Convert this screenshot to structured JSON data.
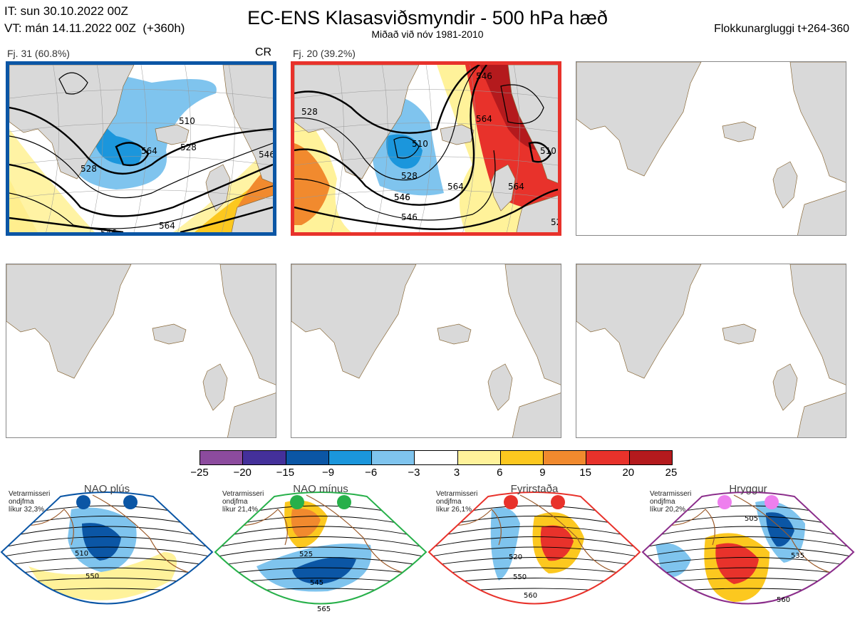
{
  "header": {
    "it": "IT: sun 30.10.2022 00Z",
    "vt": "VT: mán 14.11.2022 00Z  (+360h)",
    "title": "EC-ENS Klasasviðsmyndir - 500 hPa hæð",
    "subtitle": "Miðað við nóv 1981-2010",
    "window": "Flokkunargluggi t+264-360"
  },
  "clusters": [
    {
      "label": "Fj. 31 (60.8%)",
      "tag": "CR",
      "border_color": "#0b56a5",
      "contours": [
        "510",
        "528",
        "528",
        "546",
        "546",
        "564",
        "564"
      ]
    },
    {
      "label": "Fj. 20 (39.2%)",
      "tag": "",
      "border_color": "#e8322b",
      "contours": [
        "510",
        "528",
        "528",
        "546",
        "546",
        "564",
        "564",
        "546",
        "564",
        "528",
        "546",
        "510"
      ]
    }
  ],
  "colorbar": {
    "colors": [
      "#8c4b9e",
      "#44309a",
      "#0b56a5",
      "#1b96dc",
      "#7fc4ee",
      "#ffffff",
      "#fff29a",
      "#fcc81f",
      "#f18a2e",
      "#e8322b",
      "#b41a1d"
    ],
    "ticks": [
      "−25",
      "−20",
      "−15",
      "−9",
      "−6",
      "−3",
      "3",
      "6",
      "9",
      "15",
      "20",
      "25"
    ]
  },
  "regimes": [
    {
      "name": "NAO plús",
      "note": "Vetrarmisseri\nondjfma\nlíkur 32,3%",
      "dot_color": "#0b56a5",
      "frame_color": "#0b56a5",
      "contours": [
        "510",
        "550"
      ]
    },
    {
      "name": "NAO mínus",
      "note": "Vetrarmisseri\nondjfma\nlíkur 21,4%",
      "dot_color": "#27b04a",
      "frame_color": "#27b04a",
      "contours": [
        "525",
        "545",
        "565"
      ]
    },
    {
      "name": "Fyrirstaða",
      "note": "Vetrarmisseri\nondjfma\nlíkur 26,1%",
      "dot_color": "#e8322b",
      "frame_color": "#e8322b",
      "contours": [
        "520",
        "550",
        "560"
      ]
    },
    {
      "name": "Hryggur",
      "note": "Vetrarmisseri\nondjfma\nlíkur 20,2%",
      "dot_color": "#ee7fee",
      "frame_color": "#8b2e8b",
      "contours": [
        "505",
        "535",
        "560"
      ]
    }
  ]
}
